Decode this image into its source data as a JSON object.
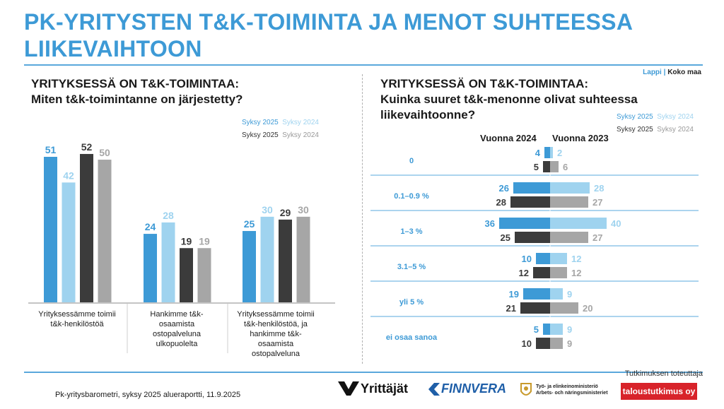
{
  "title": "PK-YRITYSTEN T&K-TOIMINTA JA MENOT SUHTEESSA LIIKEVAIHTOON",
  "region_legend": {
    "lappi": "Lappi",
    "sep": "|",
    "koko": "Koko maa"
  },
  "left": {
    "heading_line1": "YRITYKSESSÄ ON T&K-TOIMINTAA:",
    "heading_line2": "Miten t&k-toimintanne on järjestetty?",
    "legend": {
      "a1": "Syksy 2025",
      "a2": "Syksy 2024",
      "b1": "Syksy 2025",
      "b2": "Syksy 2024"
    }
  },
  "right": {
    "heading_line1": "YRITYKSESSÄ ON T&K-TOIMINTAA:",
    "heading_line2": "Kuinka suuret t&k-menonne olivat suhteessa",
    "heading_line3": "liikevaihtoonne?",
    "legend": {
      "a1": "Syksy 2025",
      "a2": "Syksy 2024",
      "b1": "Syksy 2025",
      "b2": "Syksy 2024"
    },
    "col_left": "Vuonna 2024",
    "col_right": "Vuonna 2023"
  },
  "chart_data": [
    {
      "type": "bar",
      "categories": [
        [
          "Yrityksessämme toimii",
          "t&k-henkilöstöä"
        ],
        [
          "Hankimme t&k-",
          "osaamista",
          "ostopalveluna",
          "ulkopuolelta"
        ],
        [
          "Yrityksessämme toimii",
          "t&k-henkilöstöä, ja",
          "hankimme t&k-",
          "osaamista",
          "ostopalveluna"
        ]
      ],
      "series": [
        {
          "name": "Lappi Syksy 2025",
          "color": "#3d9ad6",
          "values": [
            51,
            24,
            25
          ]
        },
        {
          "name": "Lappi Syksy 2024",
          "color": "#9fd3ef",
          "values": [
            42,
            28,
            30
          ]
        },
        {
          "name": "Koko maa Syksy 2025",
          "color": "#3b3b3b",
          "values": [
            52,
            19,
            29
          ]
        },
        {
          "name": "Koko maa Syksy 2024",
          "color": "#a6a6a6",
          "values": [
            50,
            19,
            30
          ]
        }
      ],
      "ylim": [
        0,
        60
      ]
    },
    {
      "type": "bar",
      "orientation": "horizontal-diverging",
      "categories": [
        "0",
        "0.1–0.9 %",
        "1–3 %",
        "3.1–5 %",
        "yli 5 %",
        "ei osaa sanoa"
      ],
      "series": [
        {
          "name": "Lappi Vuonna 2024 (Syksy 2025)",
          "color": "#3d9ad6",
          "side": "left",
          "values": [
            4,
            26,
            36,
            10,
            19,
            5
          ]
        },
        {
          "name": "Lappi Vuonna 2023 (Syksy 2024)",
          "color": "#9fd3ef",
          "side": "right",
          "values": [
            2,
            28,
            40,
            12,
            9,
            9
          ]
        },
        {
          "name": "Koko maa Vuonna 2024 (Syksy 2025)",
          "color": "#3b3b3b",
          "side": "left",
          "values": [
            5,
            28,
            25,
            12,
            21,
            10
          ]
        },
        {
          "name": "Koko maa Vuonna 2023 (Syksy 2024)",
          "color": "#a6a6a6",
          "side": "right",
          "values": [
            6,
            27,
            27,
            12,
            20,
            9
          ]
        }
      ]
    }
  ],
  "footer": {
    "source": "Pk-yritysbarometri, syksy 2025 alueraportti, 11.9.2025",
    "logo_yrittajat": "Yrittäjät",
    "logo_finnvera": "FINNVERA",
    "logo_tem_line1": "Työ- ja elinkeinoministeriö",
    "logo_tem_line2": "Arbets- och näringsministeriet",
    "tt_label": "Tutkimuksen toteuttaja",
    "tt_name": "taloustutkimus oy"
  }
}
